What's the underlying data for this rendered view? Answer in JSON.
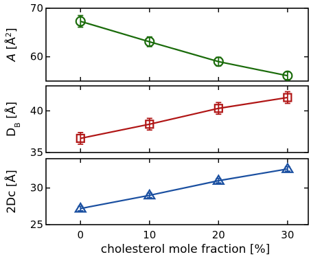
{
  "chart_data": [
    {
      "type": "line",
      "ylabel_html": [
        "A [Å",
        "2",
        "]"
      ],
      "marker": "circle",
      "color": "#1a6b0a",
      "x": [
        0,
        10,
        20,
        30
      ],
      "values": [
        67.3,
        63.1,
        59.0,
        56.1
      ],
      "errors": [
        1.2,
        1.0,
        0.9,
        0.8
      ],
      "ylim": [
        55,
        70
      ],
      "yticks": [
        60,
        70
      ],
      "yticklabels": [
        "60",
        "70"
      ]
    },
    {
      "type": "line",
      "ylabel_html": [
        "D",
        "B",
        " [Å]"
      ],
      "marker": "square",
      "color": "#b01515",
      "x": [
        0,
        10,
        20,
        30
      ],
      "values": [
        36.7,
        38.4,
        40.3,
        41.6
      ],
      "errors": [
        0.7,
        0.7,
        0.7,
        0.7
      ],
      "ylim": [
        35,
        43
      ],
      "yticks": [
        35,
        40
      ],
      "yticklabels": [
        "35",
        "40"
      ]
    },
    {
      "type": "line",
      "ylabel_html": [
        "2Dc [Å]"
      ],
      "marker": "triangle",
      "color": "#1a4fa0",
      "x": [
        0,
        10,
        20,
        30
      ],
      "values": [
        27.2,
        29.0,
        31.0,
        32.6
      ],
      "errors": [
        0.3,
        0.3,
        0.3,
        0.3
      ],
      "ylim": [
        25,
        34
      ],
      "yticks": [
        25,
        30
      ],
      "yticklabels": [
        "25",
        "30"
      ]
    }
  ],
  "xaxis": {
    "label": "cholesterol mole fraction [%]",
    "xlim": [
      -5,
      33
    ],
    "ticks": [
      0,
      10,
      20,
      30
    ],
    "ticklabels": [
      "0",
      "10",
      "20",
      "30"
    ]
  }
}
